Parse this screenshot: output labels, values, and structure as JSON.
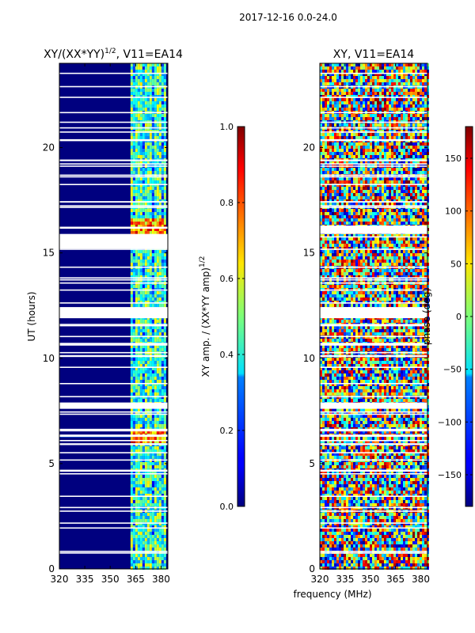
{
  "suptitle": "2017-12-16 0.0-24.0",
  "xlabel": "frequency (MHz)",
  "colors": {
    "bg": "#00007f",
    "line": "#000000",
    "gap": "#ffffff"
  },
  "chart_data": [
    {
      "type": "heatmap",
      "title": "XY/(XX*YY)",
      "title_exp": "1/2",
      "title_suffix": ", V11=EA14",
      "xlabel": "",
      "ylabel": "UT (hours)",
      "xlim": [
        320,
        384
      ],
      "ylim": [
        0,
        24
      ],
      "x_ticks": [
        320,
        335,
        350,
        365,
        380
      ],
      "y_ticks": [
        0,
        5,
        10,
        15,
        20
      ],
      "colorbar": {
        "label": "XY amp. / (XX*YY amp)",
        "label_exp": "1/2",
        "range": [
          0.0,
          1.0
        ],
        "ticks": [
          "0.0",
          "0.2",
          "0.4",
          "0.6",
          "0.8",
          "1.0"
        ],
        "tick_values": [
          0.0,
          0.2,
          0.4,
          0.6,
          0.8,
          1.0
        ]
      },
      "flagged_blocks_hours": [
        [
          11.9,
          12.4
        ],
        [
          15.2,
          15.9
        ],
        [
          7.6,
          7.9
        ]
      ],
      "bright_band_mhz": [
        362,
        382
      ]
    },
    {
      "type": "heatmap",
      "title": "XY, V11=EA14",
      "xlabel": "",
      "ylabel": "",
      "xlim": [
        320,
        384
      ],
      "ylim": [
        0,
        24
      ],
      "x_ticks": [
        320,
        335,
        350,
        365,
        380
      ],
      "y_ticks": [
        0,
        5,
        10,
        15,
        20
      ],
      "colorbar": {
        "label": "phase (deg)",
        "range": [
          -180,
          180
        ],
        "ticks": [
          "150",
          "100",
          "50",
          "0",
          "−50",
          "−100",
          "−150"
        ],
        "tick_values": [
          150,
          100,
          50,
          0,
          -50,
          -100,
          -150
        ]
      },
      "flagged_blocks_hours": [
        [
          11.9,
          12.4
        ],
        [
          15.9,
          16.3
        ],
        [
          7.6,
          7.9
        ]
      ]
    }
  ]
}
